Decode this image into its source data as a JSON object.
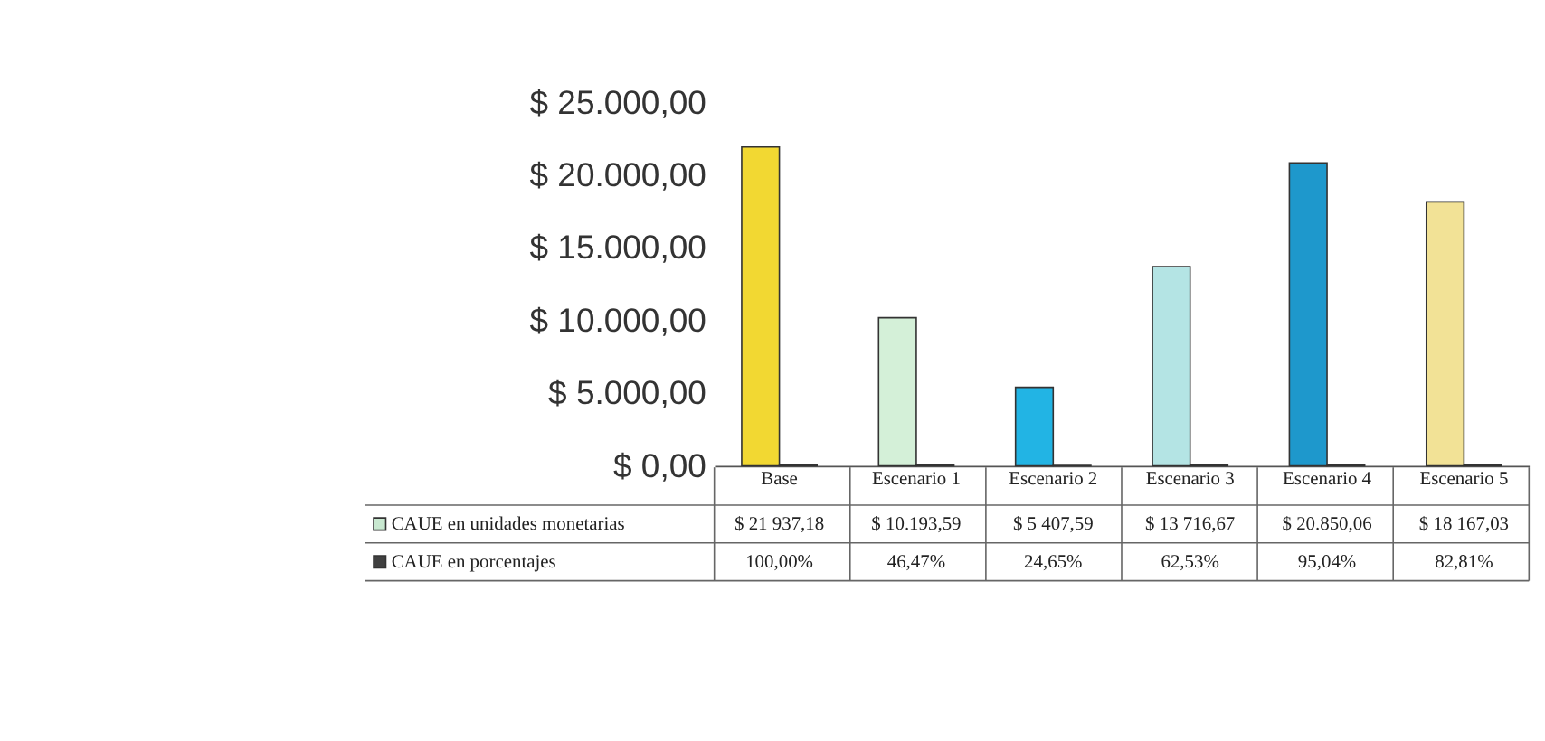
{
  "chart_data": {
    "type": "bar",
    "categories": [
      "Base",
      "Escenario 1",
      "Escenario 2",
      "Escenario 3",
      "Escenario 4",
      "Escenario 5"
    ],
    "series": [
      {
        "name": "CAUE en unidades monetarias",
        "color": "#c8e8d0",
        "colors": [
          "#f2d832",
          "#d4f0d8",
          "#22b4e4",
          "#b4e4e4",
          "#1e98cc",
          "#f2e296"
        ],
        "values": [
          21937.18,
          10193.59,
          5407.59,
          13716.67,
          20850.06,
          18167.03
        ],
        "value_labels": [
          "$ 21 937,18",
          "$ 10.193,59",
          "$ 5 407,59",
          "$ 13 716,67",
          "$ 20.850,06",
          "$ 18 167,03"
        ]
      },
      {
        "name": "CAUE en porcentajes",
        "color": "#404040",
        "values": [
          100.0,
          46.47,
          24.65,
          62.53,
          95.04,
          82.81
        ],
        "value_labels": [
          "100,00%",
          "46,47%",
          "24,65%",
          "62,53%",
          "95,04%",
          "82,81%"
        ]
      }
    ],
    "ylim": [
      0,
      25000
    ],
    "yticks": [
      {
        "value": 0,
        "label": "$ 0,00"
      },
      {
        "value": 5000,
        "label": "$ 5.000,00"
      },
      {
        "value": 10000,
        "label": "$ 10.000,00"
      },
      {
        "value": 15000,
        "label": "$ 15.000,00"
      },
      {
        "value": 20000,
        "label": "$ 20.000,00"
      },
      {
        "value": 25000,
        "label": "$ 25.000,00"
      }
    ],
    "legend": "bottom left",
    "grid": false
  }
}
